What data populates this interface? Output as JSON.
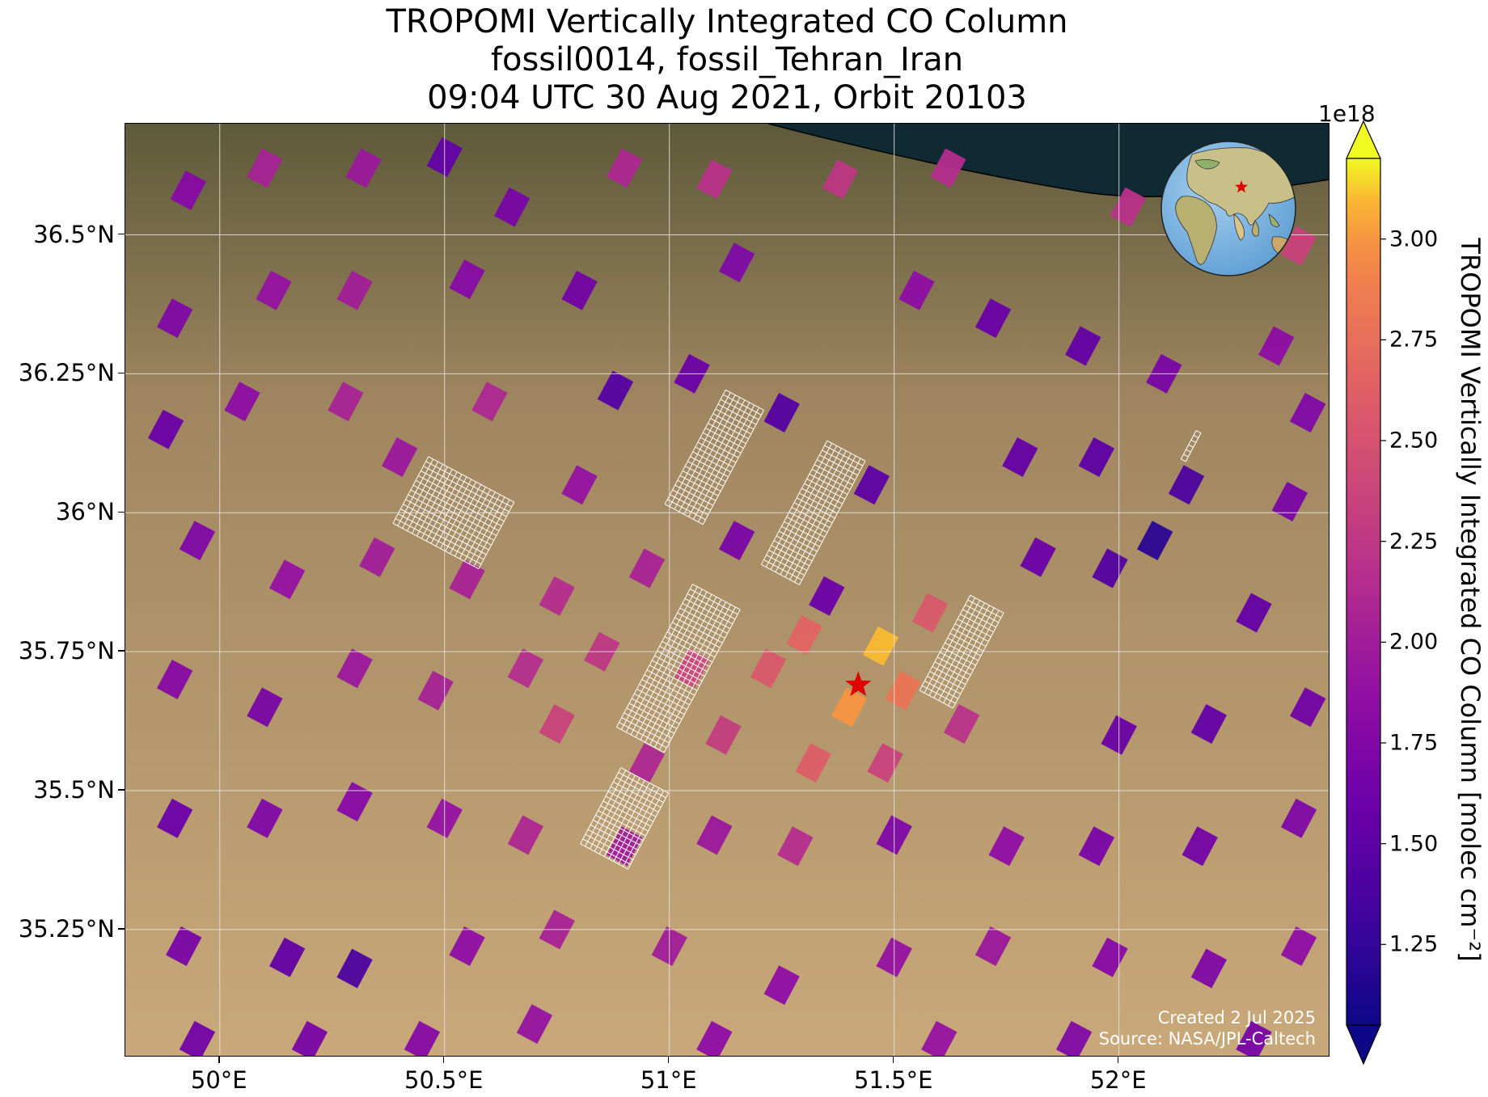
{
  "title": {
    "line1": "TROPOMI Vertically Integrated CO Column",
    "line2": "fossil0014, fossil_Tehran_Iran",
    "line3": "09:04 UTC 30 Aug 2021, Orbit 20103"
  },
  "map": {
    "extent": {
      "lon": [
        49.79,
        52.47
      ],
      "lat": [
        35.02,
        36.7
      ]
    },
    "lon_ticks": [
      {
        "value": 50.0,
        "label": "50°E"
      },
      {
        "value": 50.5,
        "label": "50.5°E"
      },
      {
        "value": 51.0,
        "label": "51°E"
      },
      {
        "value": 51.5,
        "label": "51.5°E"
      },
      {
        "value": 52.0,
        "label": "52°E"
      }
    ],
    "lat_ticks": [
      {
        "value": 36.5,
        "label": "36.5°N"
      },
      {
        "value": 36.25,
        "label": "36.25°N"
      },
      {
        "value": 36.0,
        "label": "36°N"
      },
      {
        "value": 35.75,
        "label": "35.75°N"
      },
      {
        "value": 35.5,
        "label": "35.5°N"
      },
      {
        "value": 35.25,
        "label": "35.25°N"
      }
    ],
    "gridlines": true,
    "target": {
      "lon": 51.42,
      "lat": 35.69,
      "name": "fossil_Tehran_Iran",
      "marker_color": "#e00000"
    },
    "colors": {
      "sea": "#0f2a33",
      "land": "#b89a6c",
      "grid": "#e6e6e6",
      "outline": "#ffffff"
    },
    "credit": {
      "created": "Created 2 Jul 2025",
      "source": "Source: NASA/JPL-Caltech"
    }
  },
  "colorbar": {
    "label": "TROPOMI Vertically Integrated CO Column [molec cm⁻²]",
    "exponent": "1e18",
    "min": 1.05,
    "max": 3.2,
    "ticks": [
      {
        "value": 1.25,
        "label": "1.25"
      },
      {
        "value": 1.5,
        "label": "1.50"
      },
      {
        "value": 1.75,
        "label": "1.75"
      },
      {
        "value": 2.0,
        "label": "2.00"
      },
      {
        "value": 2.25,
        "label": "2.25"
      },
      {
        "value": 2.5,
        "label": "2.50"
      },
      {
        "value": 2.75,
        "label": "2.75"
      },
      {
        "value": 3.0,
        "label": "3.00"
      }
    ],
    "colormap": "plasma",
    "extend": "both"
  },
  "chart_data": {
    "type": "heatmap",
    "title": "TROPOMI Vertically Integrated CO Column",
    "subtitle": "fossil0014, fossil_Tehran_Iran / 09:04 UTC 30 Aug 2021, Orbit 20103",
    "units": "molec cm⁻² (×1e18)",
    "pixel_orientation_deg": 62,
    "pixel_size_deg": {
      "along": 0.072,
      "across": 0.052
    },
    "pixels": [
      {
        "lon": 49.93,
        "lat": 36.58,
        "value": 1.8
      },
      {
        "lon": 50.1,
        "lat": 36.62,
        "value": 2.05
      },
      {
        "lon": 50.32,
        "lat": 36.62,
        "value": 1.95
      },
      {
        "lon": 50.5,
        "lat": 36.64,
        "value": 1.55
      },
      {
        "lon": 50.65,
        "lat": 36.55,
        "value": 1.7
      },
      {
        "lon": 50.9,
        "lat": 36.62,
        "value": 2.1
      },
      {
        "lon": 51.1,
        "lat": 36.6,
        "value": 2.2
      },
      {
        "lon": 51.38,
        "lat": 36.6,
        "value": 2.25
      },
      {
        "lon": 51.62,
        "lat": 36.62,
        "value": 2.15
      },
      {
        "lon": 52.02,
        "lat": 36.55,
        "value": 2.2
      },
      {
        "lon": 52.4,
        "lat": 36.48,
        "value": 2.35
      },
      {
        "lon": 49.9,
        "lat": 36.35,
        "value": 1.75
      },
      {
        "lon": 50.12,
        "lat": 36.4,
        "value": 1.9
      },
      {
        "lon": 50.3,
        "lat": 36.4,
        "value": 2.0
      },
      {
        "lon": 50.55,
        "lat": 36.42,
        "value": 1.8
      },
      {
        "lon": 50.8,
        "lat": 36.4,
        "value": 1.65
      },
      {
        "lon": 50.88,
        "lat": 36.22,
        "value": 1.45
      },
      {
        "lon": 51.15,
        "lat": 36.45,
        "value": 1.75
      },
      {
        "lon": 51.55,
        "lat": 36.4,
        "value": 1.85
      },
      {
        "lon": 51.72,
        "lat": 36.35,
        "value": 1.6
      },
      {
        "lon": 51.92,
        "lat": 36.3,
        "value": 1.55
      },
      {
        "lon": 52.1,
        "lat": 36.25,
        "value": 1.7
      },
      {
        "lon": 52.35,
        "lat": 36.3,
        "value": 1.85
      },
      {
        "lon": 52.42,
        "lat": 36.18,
        "value": 1.75
      },
      {
        "lon": 49.88,
        "lat": 36.15,
        "value": 1.6
      },
      {
        "lon": 50.05,
        "lat": 36.2,
        "value": 1.85
      },
      {
        "lon": 50.28,
        "lat": 36.2,
        "value": 2.05
      },
      {
        "lon": 50.4,
        "lat": 36.1,
        "value": 1.95
      },
      {
        "lon": 50.6,
        "lat": 36.2,
        "value": 2.1
      },
      {
        "lon": 50.8,
        "lat": 36.05,
        "value": 1.9
      },
      {
        "lon": 51.05,
        "lat": 36.25,
        "value": 1.6
      },
      {
        "lon": 51.25,
        "lat": 36.18,
        "value": 1.45
      },
      {
        "lon": 51.45,
        "lat": 36.05,
        "value": 1.5
      },
      {
        "lon": 51.78,
        "lat": 36.1,
        "value": 1.55
      },
      {
        "lon": 51.95,
        "lat": 36.1,
        "value": 1.5
      },
      {
        "lon": 52.15,
        "lat": 36.05,
        "value": 1.4
      },
      {
        "lon": 52.38,
        "lat": 36.02,
        "value": 1.7
      },
      {
        "lon": 49.95,
        "lat": 35.95,
        "value": 1.75
      },
      {
        "lon": 50.15,
        "lat": 35.88,
        "value": 1.9
      },
      {
        "lon": 50.35,
        "lat": 35.92,
        "value": 2.0
      },
      {
        "lon": 50.55,
        "lat": 35.88,
        "value": 2.05
      },
      {
        "lon": 50.75,
        "lat": 35.85,
        "value": 2.15
      },
      {
        "lon": 50.95,
        "lat": 35.9,
        "value": 2.05
      },
      {
        "lon": 51.15,
        "lat": 35.95,
        "value": 1.7
      },
      {
        "lon": 51.35,
        "lat": 35.85,
        "value": 1.6
      },
      {
        "lon": 51.82,
        "lat": 35.92,
        "value": 1.6
      },
      {
        "lon": 51.98,
        "lat": 35.9,
        "value": 1.45
      },
      {
        "lon": 52.08,
        "lat": 35.95,
        "value": 1.2
      },
      {
        "lon": 52.3,
        "lat": 35.82,
        "value": 1.55
      },
      {
        "lon": 52.42,
        "lat": 35.65,
        "value": 1.65
      },
      {
        "lon": 49.9,
        "lat": 35.7,
        "value": 1.8
      },
      {
        "lon": 50.1,
        "lat": 35.65,
        "value": 1.7
      },
      {
        "lon": 50.3,
        "lat": 35.72,
        "value": 1.95
      },
      {
        "lon": 50.48,
        "lat": 35.68,
        "value": 2.05
      },
      {
        "lon": 50.68,
        "lat": 35.72,
        "value": 2.15
      },
      {
        "lon": 50.85,
        "lat": 35.75,
        "value": 2.25
      },
      {
        "lon": 51.05,
        "lat": 35.72,
        "value": 2.4
      },
      {
        "lon": 51.22,
        "lat": 35.72,
        "value": 2.55
      },
      {
        "lon": 51.3,
        "lat": 35.78,
        "value": 2.65
      },
      {
        "lon": 51.47,
        "lat": 35.76,
        "value": 3.1
      },
      {
        "lon": 51.4,
        "lat": 35.65,
        "value": 3.0
      },
      {
        "lon": 51.52,
        "lat": 35.68,
        "value": 2.8
      },
      {
        "lon": 51.58,
        "lat": 35.82,
        "value": 2.55
      },
      {
        "lon": 51.32,
        "lat": 35.55,
        "value": 2.6
      },
      {
        "lon": 51.48,
        "lat": 35.55,
        "value": 2.35
      },
      {
        "lon": 51.65,
        "lat": 35.62,
        "value": 2.2
      },
      {
        "lon": 51.12,
        "lat": 35.6,
        "value": 2.3
      },
      {
        "lon": 50.75,
        "lat": 35.62,
        "value": 2.35
      },
      {
        "lon": 50.95,
        "lat": 35.55,
        "value": 2.1
      },
      {
        "lon": 52.0,
        "lat": 35.6,
        "value": 1.6
      },
      {
        "lon": 52.2,
        "lat": 35.62,
        "value": 1.55
      },
      {
        "lon": 49.9,
        "lat": 35.45,
        "value": 1.6
      },
      {
        "lon": 50.1,
        "lat": 35.45,
        "value": 1.75
      },
      {
        "lon": 50.3,
        "lat": 35.48,
        "value": 1.8
      },
      {
        "lon": 50.5,
        "lat": 35.45,
        "value": 1.9
      },
      {
        "lon": 50.68,
        "lat": 35.42,
        "value": 2.1
      },
      {
        "lon": 50.9,
        "lat": 35.4,
        "value": 2.0
      },
      {
        "lon": 51.1,
        "lat": 35.42,
        "value": 1.95
      },
      {
        "lon": 51.28,
        "lat": 35.4,
        "value": 2.15
      },
      {
        "lon": 51.5,
        "lat": 35.42,
        "value": 1.75
      },
      {
        "lon": 51.75,
        "lat": 35.4,
        "value": 1.85
      },
      {
        "lon": 51.95,
        "lat": 35.4,
        "value": 1.7
      },
      {
        "lon": 52.18,
        "lat": 35.4,
        "value": 1.65
      },
      {
        "lon": 52.4,
        "lat": 35.45,
        "value": 1.75
      },
      {
        "lon": 49.92,
        "lat": 35.22,
        "value": 1.7
      },
      {
        "lon": 50.15,
        "lat": 35.2,
        "value": 1.55
      },
      {
        "lon": 50.3,
        "lat": 35.18,
        "value": 1.4
      },
      {
        "lon": 50.55,
        "lat": 35.22,
        "value": 1.85
      },
      {
        "lon": 50.75,
        "lat": 35.25,
        "value": 2.05
      },
      {
        "lon": 51.0,
        "lat": 35.22,
        "value": 2.0
      },
      {
        "lon": 51.25,
        "lat": 35.15,
        "value": 1.85
      },
      {
        "lon": 51.5,
        "lat": 35.2,
        "value": 1.9
      },
      {
        "lon": 51.72,
        "lat": 35.22,
        "value": 1.95
      },
      {
        "lon": 51.98,
        "lat": 35.2,
        "value": 1.8
      },
      {
        "lon": 52.2,
        "lat": 35.18,
        "value": 1.75
      },
      {
        "lon": 52.4,
        "lat": 35.22,
        "value": 1.85
      },
      {
        "lon": 49.95,
        "lat": 35.05,
        "value": 1.65
      },
      {
        "lon": 50.2,
        "lat": 35.05,
        "value": 1.7
      },
      {
        "lon": 50.45,
        "lat": 35.05,
        "value": 1.8
      },
      {
        "lon": 50.7,
        "lat": 35.08,
        "value": 1.9
      },
      {
        "lon": 51.1,
        "lat": 35.05,
        "value": 1.85
      },
      {
        "lon": 51.6,
        "lat": 35.05,
        "value": 1.9
      },
      {
        "lon": 51.9,
        "lat": 35.05,
        "value": 1.75
      },
      {
        "lon": 52.3,
        "lat": 35.05,
        "value": 1.7
      }
    ],
    "outline_regions": [
      {
        "lon": 50.52,
        "lat": 36.0,
        "along_cells": 14,
        "across_cells": 18
      },
      {
        "lon": 51.02,
        "lat": 35.72,
        "along_cells": 30,
        "across_cells": 10
      },
      {
        "lon": 51.1,
        "lat": 36.1,
        "along_cells": 24,
        "across_cells": 8
      },
      {
        "lon": 51.32,
        "lat": 36.0,
        "along_cells": 26,
        "across_cells": 8
      },
      {
        "lon": 51.65,
        "lat": 35.75,
        "along_cells": 20,
        "across_cells": 7
      },
      {
        "lon": 50.9,
        "lat": 35.45,
        "along_cells": 16,
        "across_cells": 10
      },
      {
        "lon": 52.16,
        "lat": 36.12,
        "along_cells": 6,
        "across_cells": 1
      }
    ]
  }
}
